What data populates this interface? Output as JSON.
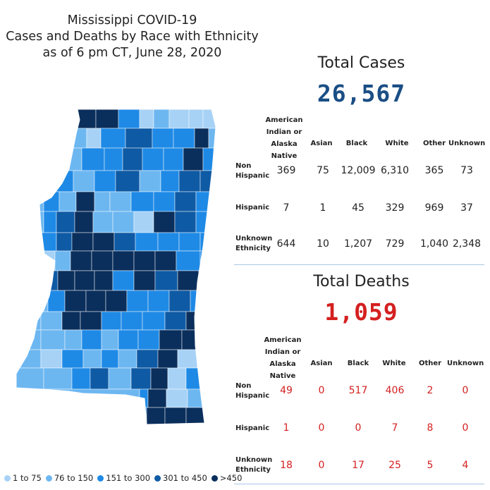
{
  "title": {
    "line1": "Mississippi COVID-19",
    "line2": "Cases and Deaths by Race with Ethnicity",
    "line3": "as of 6 pm CT, June 28, 2020"
  },
  "colors": {
    "bin1": "#a7d2f6",
    "bin2": "#6db7f1",
    "bin3": "#1f8ae6",
    "bin4": "#0f5aa4",
    "bin5": "#0b2f5c",
    "cases_total": "#1a4e85",
    "deaths_total": "#d42020"
  },
  "legend": [
    {
      "label": "1 to 75",
      "color": "#a7d2f6"
    },
    {
      "label": "76 to 150",
      "color": "#6db7f1"
    },
    {
      "label": "151 to 300",
      "color": "#1f8ae6"
    },
    {
      "label": "301 to 450",
      "color": "#0f5aa4"
    },
    {
      "label": ">450",
      "color": "#0b2f5c"
    }
  ],
  "columns": {
    "aian_1": "American",
    "aian_2": "Indian or",
    "aian_3": "Alaska Native",
    "asian": "Asian",
    "black": "Black",
    "white": "White",
    "other": "Other",
    "unknown": "Unknown"
  },
  "rows": {
    "non_hispanic_1": "Non",
    "non_hispanic_2": "Hispanic",
    "hispanic": "Hispanic",
    "unknown_eth_1": "Unknown",
    "unknown_eth_2": "Ethnicity"
  },
  "cases": {
    "title": "Total Cases",
    "total": "26,567",
    "non_hispanic": [
      "369",
      "75",
      "12,009",
      "6,310",
      "365",
      "73"
    ],
    "hispanic": [
      "7",
      "1",
      "45",
      "329",
      "969",
      "37"
    ],
    "unknown_ethnicity": [
      "644",
      "10",
      "1,207",
      "729",
      "1,040",
      "2,348"
    ]
  },
  "deaths": {
    "title": "Total Deaths",
    "total": "1,059",
    "non_hispanic": [
      "49",
      "0",
      "517",
      "406",
      "2",
      "0"
    ],
    "hispanic": [
      "1",
      "0",
      "0",
      "7",
      "8",
      "0"
    ],
    "unknown_ethnicity": [
      "18",
      "0",
      "17",
      "25",
      "5",
      "4"
    ]
  }
}
